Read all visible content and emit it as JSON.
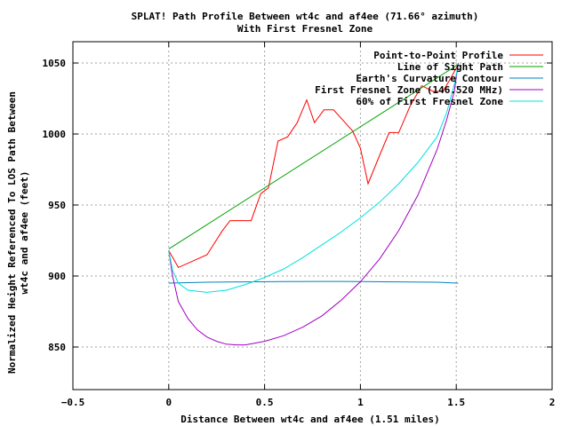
{
  "chart_data": {
    "type": "line",
    "title": "SPLAT! Path Profile Between wt4c and af4ee (71.66° azimuth)",
    "subtitle": "With First Fresnel Zone",
    "xlabel": "Distance Between wt4c and af4ee (1.51 miles)",
    "ylabel_line1": "Normalized Height Referenced To LOS Path Between",
    "ylabel_line2": "wt4c and af4ee (feet)",
    "xlim": [
      -0.5,
      2
    ],
    "ylim": [
      820,
      1065
    ],
    "x_ticks": [
      -0.5,
      0,
      0.5,
      1,
      1.5,
      2
    ],
    "x_tick_labels": [
      "−0.5",
      "0",
      "0.5",
      "1",
      "1.5",
      "2"
    ],
    "y_ticks": [
      850,
      900,
      950,
      1000,
      1050
    ],
    "y_tick_labels": [
      "850",
      "900",
      "950",
      "1000",
      "1050"
    ],
    "grid": true,
    "legend_position": "top-right",
    "series": [
      {
        "name": "Point-to-Point Profile",
        "color": "#ff0000",
        "x": [
          0,
          0.05,
          0.2,
          0.28,
          0.32,
          0.38,
          0.43,
          0.48,
          0.52,
          0.57,
          0.62,
          0.67,
          0.72,
          0.76,
          0.81,
          0.86,
          0.92,
          0.96,
          1.0,
          1.04,
          1.1,
          1.15,
          1.2,
          1.26,
          1.32,
          1.38,
          1.43,
          1.47,
          1.51
        ],
        "y": [
          918,
          906,
          915,
          932,
          939,
          939,
          939,
          958,
          962,
          995,
          998,
          1008,
          1024,
          1008,
          1017,
          1017,
          1008,
          1002,
          990,
          965,
          985,
          1001,
          1001,
          1020,
          1034,
          1030,
          1030,
          1039,
          1049
        ]
      },
      {
        "name": "Line of Sight Path",
        "color": "#00a000",
        "x": [
          0,
          1.51
        ],
        "y": [
          919,
          1049
        ]
      },
      {
        "name": "Earth's Curvature Contour",
        "color": "#0080c0",
        "x": [
          0,
          0.2,
          0.4,
          0.6,
          0.8,
          1.0,
          1.2,
          1.4,
          1.51
        ],
        "y": [
          895,
          895.6,
          895.9,
          896.1,
          896.2,
          896.1,
          895.9,
          895.6,
          895
        ]
      },
      {
        "name": "First Fresnel Zone (146.520 MHz)",
        "color": "#a000c0",
        "x": [
          0,
          0.02,
          0.05,
          0.1,
          0.15,
          0.2,
          0.25,
          0.3,
          0.35,
          0.4,
          0.5,
          0.6,
          0.7,
          0.8,
          0.9,
          1.0,
          1.1,
          1.2,
          1.3,
          1.4,
          1.45,
          1.49,
          1.51
        ],
        "y": [
          918,
          900,
          882,
          870,
          862,
          857,
          854,
          852,
          851.5,
          851.5,
          854,
          858,
          864,
          872,
          883,
          896,
          912,
          932,
          957,
          989,
          1010,
          1030,
          1050
        ]
      },
      {
        "name": "60% of First Fresnel Zone",
        "color": "#00e0e0",
        "x": [
          0,
          0.02,
          0.05,
          0.1,
          0.2,
          0.3,
          0.4,
          0.5,
          0.6,
          0.7,
          0.8,
          0.9,
          1.0,
          1.1,
          1.2,
          1.3,
          1.4,
          1.45,
          1.49,
          1.51
        ],
        "y": [
          918,
          904,
          895,
          890,
          888.5,
          890,
          894,
          899,
          905,
          913,
          922,
          931,
          941,
          952,
          965,
          980,
          998,
          1015,
          1035,
          1049
        ]
      }
    ]
  }
}
